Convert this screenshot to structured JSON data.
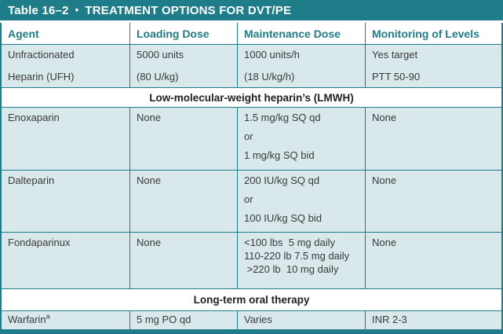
{
  "colors": {
    "accent_teal": "#1f7d8a",
    "row_light_blue": "#d9e8ea",
    "header_text": "#1f7d8a",
    "body_text": "#3a3a3a",
    "band_text": "#1f1f1f",
    "title_text": "#ffffff"
  },
  "title": {
    "table_label": "Table 16–2",
    "bullet": "•",
    "heading": "TREATMENT OPTIONS FOR DVT/PE"
  },
  "columns": [
    "Agent",
    "Loading Dose",
    "Maintenance Dose",
    "Monitoring of Levels"
  ],
  "rows": [
    {
      "agent": [
        "Unfractionated",
        "Heparin (UFH)"
      ],
      "loading": [
        "5000 units",
        "(80 U/kg)"
      ],
      "maintenance": [
        "1000 units/h",
        "(18 U/kg/h)"
      ],
      "monitoring": [
        "Yes target",
        "PTT 50-90"
      ]
    },
    {
      "label": "Low-molecular-weight heparin’s (LMWH)"
    },
    {
      "agent": [
        "Enoxaparin"
      ],
      "loading": [
        "None"
      ],
      "maintenance": [
        "1.5 mg/kg SQ qd",
        "or",
        "1 mg/kg SQ bid"
      ],
      "monitoring": [
        "None"
      ]
    },
    {
      "agent": [
        "Dalteparin"
      ],
      "loading": [
        "None"
      ],
      "maintenance": [
        "200 IU/kg SQ qd",
        "or",
        "100 IU/kg SQ bid"
      ],
      "monitoring": [
        "None"
      ]
    },
    {
      "agent": [
        "Fondaparinux"
      ],
      "loading": [
        "None"
      ],
      "maintenance": [
        "<100 lbs  5 mg daily",
        "110-220 lb 7.5 mg daily",
        " >220 lb  10 mg daily"
      ],
      "monitoring": [
        "None"
      ]
    },
    {
      "label": "Long-term oral therapy"
    },
    {
      "agent_base": "Warfarin",
      "agent_sup": "a",
      "loading": [
        "5 mg PO qd"
      ],
      "maintenance": [
        "Varies"
      ],
      "monitoring": [
        "INR 2-3"
      ]
    }
  ]
}
